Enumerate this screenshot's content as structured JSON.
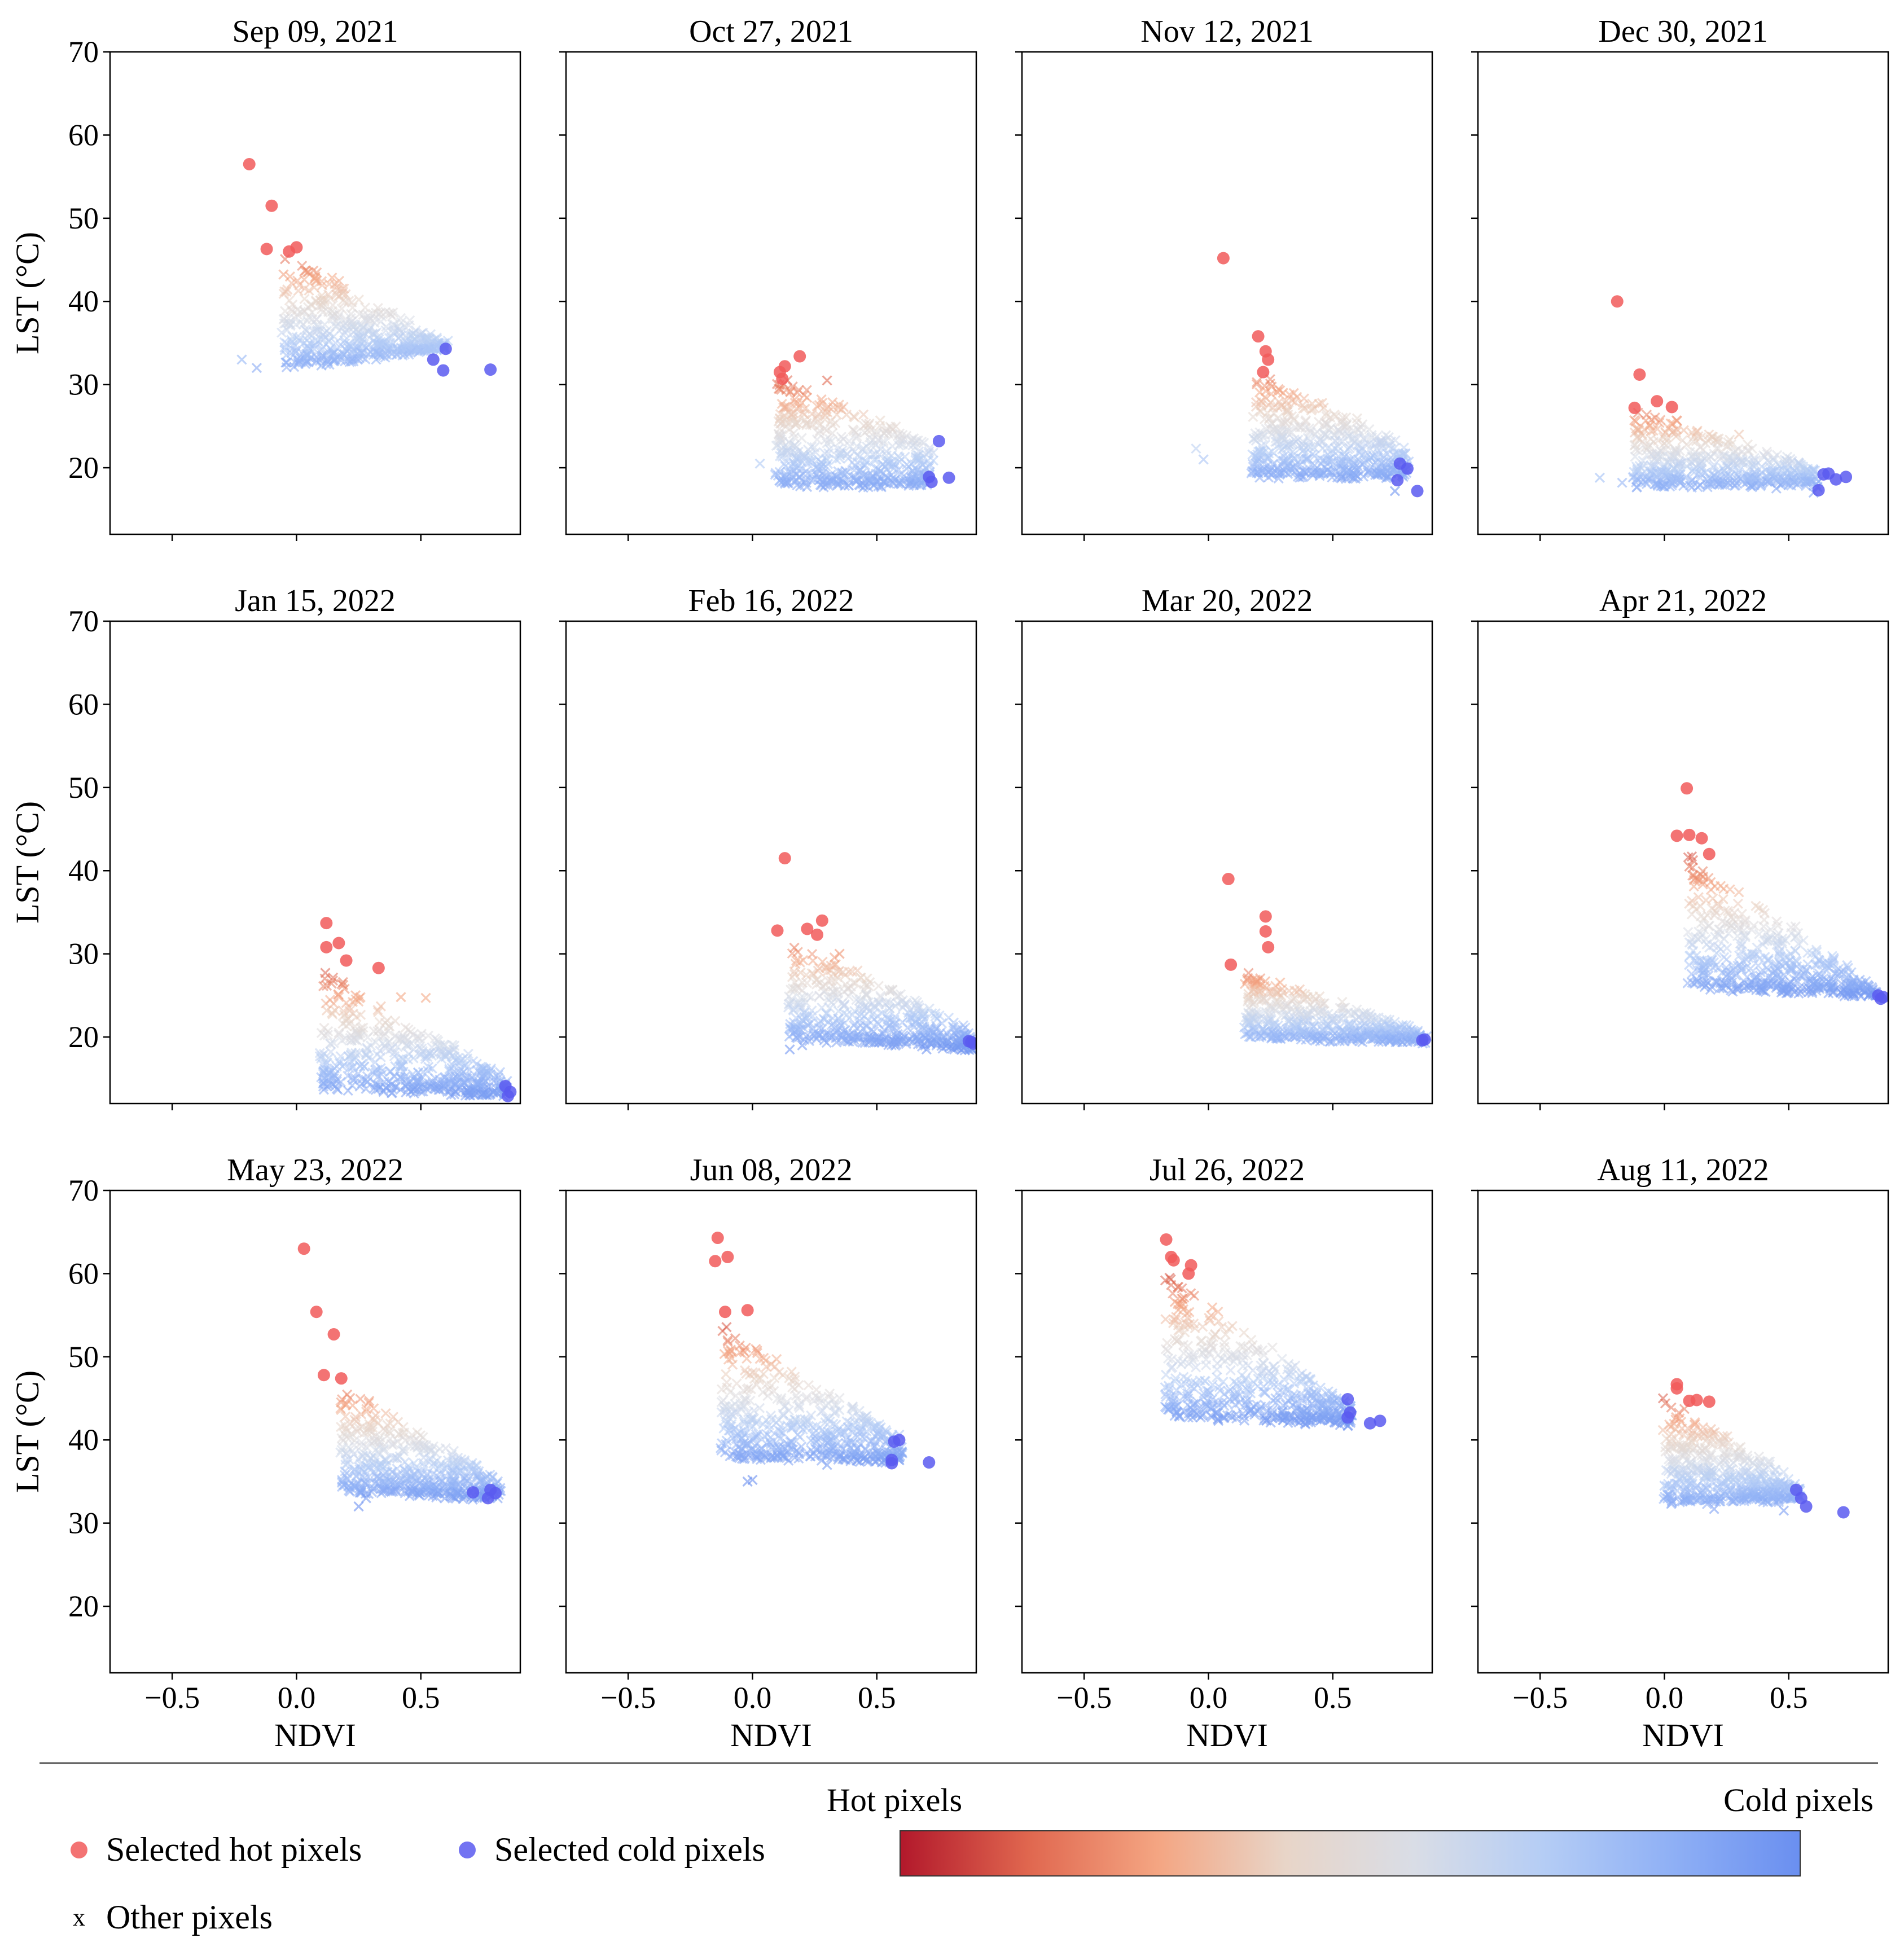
{
  "figure": {
    "x_axis_label": "NDVI",
    "y_axis_label": "LST (°C)",
    "x_ticks": [
      "−0.5",
      "0.0",
      "0.5"
    ],
    "y_ticks": [
      "20",
      "30",
      "40",
      "50",
      "60",
      "70"
    ]
  },
  "legend": {
    "hot_label": "Selected hot pixels",
    "cold_label": "Selected cold pixels",
    "other_label": "Other pixels",
    "other_marker": "x"
  },
  "colorbar": {
    "left_label": "Hot pixels",
    "right_label": "Cold pixels",
    "colormap": "coolwarm (reversed)"
  },
  "colors": {
    "hot": "#f15b5b",
    "cold": "#5b5bf0",
    "cmap_stops": [
      "#b2182b",
      "#e0674f",
      "#f4a582",
      "#e8d5c8",
      "#d9dde6",
      "#b5cdf5",
      "#8fb0f5",
      "#6a8ff0"
    ]
  },
  "chart_data": {
    "type": "scatter",
    "xlabel": "NDVI",
    "ylabel": "LST (°C)",
    "xlim": [
      -0.75,
      0.9
    ],
    "ylim": [
      12,
      70
    ],
    "panels": [
      {
        "title": "Sep 09, 2021",
        "show_ylabel": true,
        "show_xticks": false,
        "other": {
          "x": [
            -0.05,
            0.6
          ],
          "y_low": [
            32,
            34.5
          ],
          "y_high": [
            46,
            35
          ],
          "outliers": [
            [
              -0.22,
              33
            ],
            [
              -0.16,
              32
            ],
            [
              0.1,
              32.3
            ],
            [
              0.32,
              33
            ],
            [
              0.5,
              35.5
            ]
          ]
        },
        "hot": [
          [
            -0.19,
            56.5
          ],
          [
            -0.1,
            51.5
          ],
          [
            -0.12,
            46.3
          ],
          [
            -0.03,
            46
          ],
          [
            0.0,
            46.5
          ]
        ],
        "cold": [
          [
            0.55,
            33
          ],
          [
            0.6,
            34.3
          ],
          [
            0.59,
            31.7
          ],
          [
            0.78,
            31.8
          ]
        ]
      },
      {
        "title": "Oct 27, 2021",
        "show_ylabel": false,
        "show_xticks": false,
        "other": {
          "x": [
            0.1,
            0.72
          ],
          "y_low": [
            18,
            18
          ],
          "y_high": [
            31,
            23
          ],
          "outliers": [
            [
              0.03,
              20.5
            ],
            [
              0.3,
              30.5
            ],
            [
              0.47,
              25.3
            ],
            [
              0.5,
              24
            ]
          ]
        },
        "hot": [
          [
            0.11,
            31.5
          ],
          [
            0.13,
            32.2
          ],
          [
            0.12,
            30.7
          ],
          [
            0.19,
            33.4
          ]
        ],
        "cold": [
          [
            0.75,
            23.2
          ],
          [
            0.71,
            18.9
          ],
          [
            0.72,
            18.3
          ],
          [
            0.79,
            18.8
          ]
        ]
      },
      {
        "title": "Nov 12, 2021",
        "show_ylabel": false,
        "show_xticks": false,
        "other": {
          "x": [
            0.18,
            0.8
          ],
          "y_low": [
            19,
            19
          ],
          "y_high": [
            32,
            22.5
          ],
          "outliers": [
            [
              -0.05,
              22.3
            ],
            [
              -0.02,
              21
            ],
            [
              0.3,
              29
            ],
            [
              0.75,
              17.2
            ]
          ]
        },
        "hot": [
          [
            0.06,
            45.2
          ],
          [
            0.2,
            35.8
          ],
          [
            0.23,
            34
          ],
          [
            0.24,
            33
          ],
          [
            0.22,
            31.5
          ]
        ],
        "cold": [
          [
            0.77,
            20.5
          ],
          [
            0.8,
            19.9
          ],
          [
            0.76,
            18.5
          ],
          [
            0.84,
            17.2
          ]
        ]
      },
      {
        "title": "Dec 30, 2021",
        "show_ylabel": false,
        "show_xticks": false,
        "other": {
          "x": [
            -0.12,
            0.62
          ],
          "y_low": [
            18,
            18
          ],
          "y_high": [
            27,
            20
          ],
          "outliers": [
            [
              -0.26,
              18.8
            ],
            [
              -0.17,
              18.2
            ],
            [
              0.3,
              24
            ],
            [
              0.45,
              17.5
            ],
            [
              0.6,
              17
            ]
          ]
        },
        "hot": [
          [
            -0.19,
            40
          ],
          [
            -0.1,
            31.2
          ],
          [
            -0.12,
            27.2
          ],
          [
            -0.03,
            28
          ],
          [
            0.03,
            27.3
          ]
        ],
        "cold": [
          [
            0.64,
            19.2
          ],
          [
            0.66,
            19.3
          ],
          [
            0.69,
            18.6
          ],
          [
            0.73,
            18.9
          ],
          [
            0.62,
            17.3
          ]
        ]
      },
      {
        "title": "Jan 15, 2022",
        "show_ylabel": true,
        "show_xticks": false,
        "other": {
          "x": [
            0.1,
            0.85
          ],
          "y_low": [
            14,
            13
          ],
          "y_high": [
            28,
            15
          ],
          "outliers": [
            [
              0.17,
              20.3
            ],
            [
              0.22,
              20.2
            ],
            [
              0.42,
              24.8
            ],
            [
              0.52,
              24.7
            ]
          ]
        },
        "hot": [
          [
            0.12,
            33.7
          ],
          [
            0.12,
            30.8
          ],
          [
            0.17,
            31.3
          ],
          [
            0.2,
            29.2
          ],
          [
            0.33,
            28.3
          ]
        ],
        "cold": [
          [
            0.84,
            14.1
          ],
          [
            0.86,
            13.4
          ],
          [
            0.85,
            12.9
          ]
        ]
      },
      {
        "title": "Feb 16, 2022",
        "show_ylabel": false,
        "show_xticks": false,
        "other": {
          "x": [
            0.15,
            0.88
          ],
          "y_low": [
            20,
            18.5
          ],
          "y_high": [
            32,
            21
          ],
          "outliers": [
            [
              0.15,
              18.5
            ],
            [
              0.2,
              19
            ],
            [
              0.2,
              22
            ],
            [
              0.35,
              30
            ],
            [
              0.7,
              18.5
            ]
          ]
        },
        "hot": [
          [
            0.13,
            41.5
          ],
          [
            0.1,
            32.8
          ],
          [
            0.22,
            33
          ],
          [
            0.28,
            34
          ],
          [
            0.26,
            32.3
          ]
        ],
        "cold": [
          [
            0.87,
            19.5
          ],
          [
            0.89,
            19.2
          ],
          [
            0.88,
            19.4
          ]
        ]
      },
      {
        "title": "Mar 20, 2022",
        "show_ylabel": false,
        "show_xticks": false,
        "other": {
          "x": [
            0.15,
            0.87
          ],
          "y_low": [
            20,
            19.5
          ],
          "y_high": [
            28,
            20.5
          ],
          "outliers": [
            [
              0.17,
              20
            ],
            [
              0.22,
              21
            ],
            [
              0.45,
              23
            ],
            [
              0.8,
              19.4
            ]
          ]
        },
        "hot": [
          [
            0.08,
            39
          ],
          [
            0.23,
            34.5
          ],
          [
            0.23,
            32.7
          ],
          [
            0.24,
            30.8
          ],
          [
            0.09,
            28.7
          ]
        ],
        "cold": [
          [
            0.86,
            19.6
          ],
          [
            0.87,
            19.7
          ]
        ]
      },
      {
        "title": "Apr 21, 2022",
        "show_ylabel": false,
        "show_xticks": false,
        "other": {
          "x": [
            0.1,
            0.85
          ],
          "y_low": [
            26,
            25
          ],
          "y_high": [
            42,
            26
          ],
          "outliers": [
            [
              0.1,
              40.5
            ],
            [
              0.24,
              31.8
            ],
            [
              0.38,
              35.5
            ],
            [
              0.25,
              26.2
            ]
          ]
        },
        "hot": [
          [
            0.05,
            44.2
          ],
          [
            0.09,
            49.9
          ],
          [
            0.1,
            44.3
          ],
          [
            0.15,
            43.9
          ],
          [
            0.18,
            42
          ]
        ],
        "cold": [
          [
            0.86,
            25
          ],
          [
            0.88,
            24.8
          ],
          [
            0.87,
            24.6
          ]
        ]
      },
      {
        "title": "May 23, 2022",
        "show_ylabel": true,
        "show_xticks": true,
        "other": {
          "x": [
            0.18,
            0.82
          ],
          "y_low": [
            34,
            33
          ],
          "y_high": [
            47,
            35
          ],
          "outliers": [
            [
              0.25,
              32
            ],
            [
              0.28,
              33
            ],
            [
              0.6,
              39
            ],
            [
              0.72,
              34
            ]
          ]
        },
        "hot": [
          [
            0.03,
            63
          ],
          [
            0.08,
            55.4
          ],
          [
            0.15,
            52.7
          ],
          [
            0.11,
            47.8
          ],
          [
            0.18,
            47.4
          ]
        ],
        "cold": [
          [
            0.71,
            33.7
          ],
          [
            0.77,
            33
          ],
          [
            0.78,
            34
          ],
          [
            0.8,
            33.6
          ]
        ]
      },
      {
        "title": "Jun 08, 2022",
        "show_ylabel": false,
        "show_xticks": true,
        "other": {
          "x": [
            -0.12,
            0.6
          ],
          "y_low": [
            38,
            37.5
          ],
          "y_high": [
            54,
            40
          ],
          "outliers": [
            [
              -0.02,
              35
            ],
            [
              0.0,
              35.2
            ],
            [
              0.1,
              38
            ],
            [
              0.3,
              37
            ],
            [
              0.6,
              38.5
            ]
          ]
        },
        "hot": [
          [
            -0.14,
            64.3
          ],
          [
            -0.15,
            61.5
          ],
          [
            -0.1,
            62
          ],
          [
            -0.11,
            55.4
          ],
          [
            -0.02,
            55.6
          ]
        ],
        "cold": [
          [
            0.57,
            39.8
          ],
          [
            0.59,
            40
          ],
          [
            0.56,
            37.6
          ],
          [
            0.56,
            37.2
          ],
          [
            0.71,
            37.3
          ]
        ]
      },
      {
        "title": "Jul 26, 2022",
        "show_ylabel": false,
        "show_xticks": true,
        "other": {
          "x": [
            -0.17,
            0.58
          ],
          "y_low": [
            43,
            42
          ],
          "y_high": [
            60,
            44
          ],
          "outliers": [
            [
              -0.16,
              46.5
            ],
            [
              0.04,
              42.3
            ],
            [
              0.16,
              51
            ],
            [
              0.27,
              45
            ]
          ]
        },
        "hot": [
          [
            -0.17,
            64.1
          ],
          [
            -0.15,
            62
          ],
          [
            -0.14,
            61.6
          ],
          [
            -0.07,
            61
          ],
          [
            -0.08,
            60
          ]
        ],
        "cold": [
          [
            0.56,
            44.9
          ],
          [
            0.57,
            43.3
          ],
          [
            0.56,
            42.7
          ],
          [
            0.65,
            42
          ],
          [
            0.69,
            42.3
          ]
        ]
      },
      {
        "title": "Aug 11, 2022",
        "show_ylabel": false,
        "show_xticks": true,
        "other": {
          "x": [
            0.0,
            0.55
          ],
          "y_low": [
            32.5,
            33
          ],
          "y_high": [
            45,
            34.5
          ],
          "outliers": [
            [
              0.0,
              34.5
            ],
            [
              0.2,
              31.7
            ],
            [
              0.48,
              31.5
            ],
            [
              0.38,
              38
            ]
          ]
        },
        "hot": [
          [
            0.05,
            46.2
          ],
          [
            0.05,
            46.7
          ],
          [
            0.1,
            44.7
          ],
          [
            0.13,
            44.8
          ],
          [
            0.18,
            44.6
          ]
        ],
        "cold": [
          [
            0.53,
            34
          ],
          [
            0.55,
            33
          ],
          [
            0.57,
            32
          ],
          [
            0.72,
            31.3
          ]
        ]
      }
    ]
  }
}
